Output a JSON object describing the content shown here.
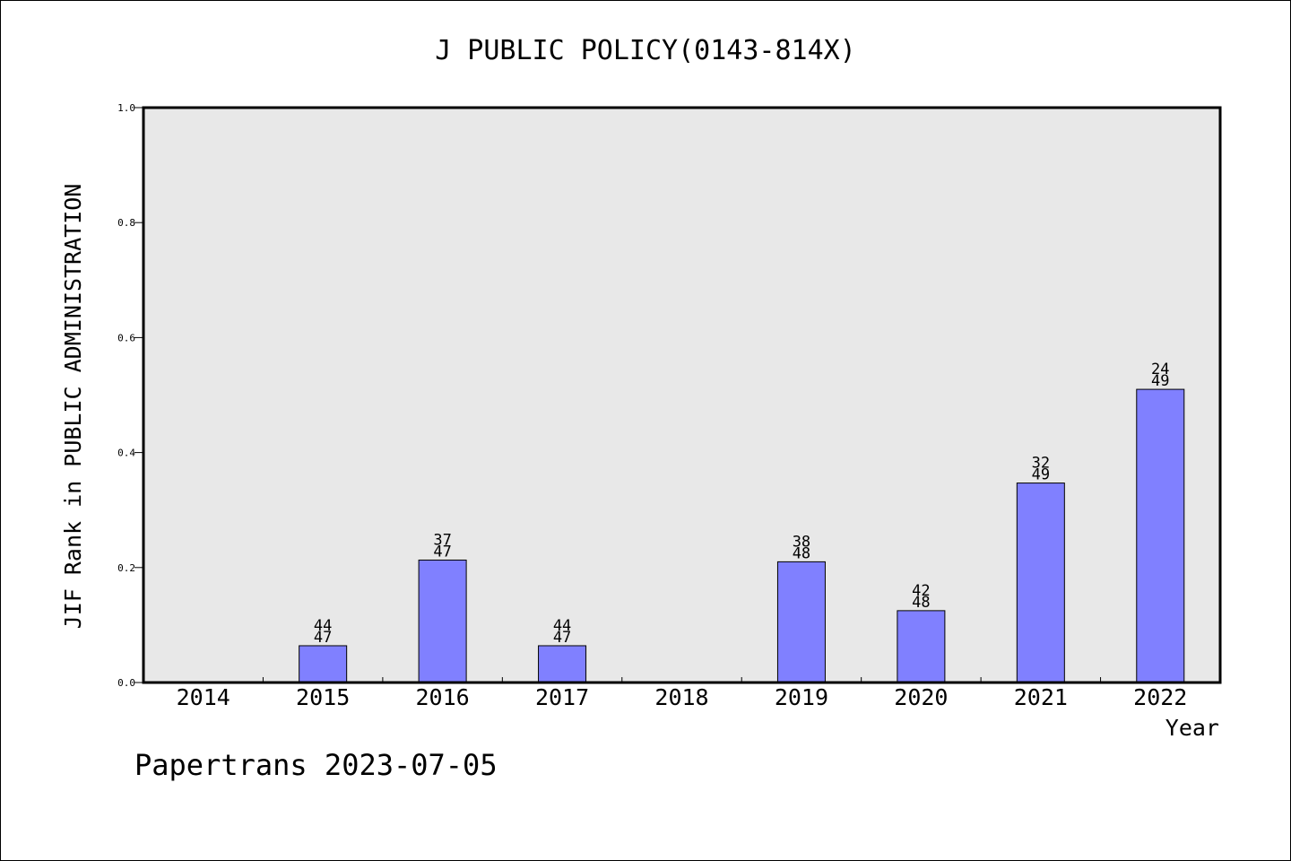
{
  "chart_data": {
    "type": "bar",
    "title": "J PUBLIC POLICY(0143-814X)",
    "xlabel": "Year",
    "ylabel": "JIF Rank in PUBLIC ADMINISTRATION",
    "ylim": [
      0,
      1.0
    ],
    "yticks": [
      "0.0",
      "0.2",
      "0.4",
      "0.6",
      "0.8",
      "1.0"
    ],
    "categories": [
      "2014",
      "2015",
      "2016",
      "2017",
      "2018",
      "2019",
      "2020",
      "2021",
      "2022"
    ],
    "values": [
      null,
      0.064,
      0.213,
      0.064,
      null,
      0.21,
      0.125,
      0.347,
      0.51
    ],
    "labels": [
      null,
      {
        "rank": "44",
        "total": "47"
      },
      {
        "rank": "37",
        "total": "47"
      },
      {
        "rank": "44",
        "total": "47"
      },
      null,
      {
        "rank": "38",
        "total": "48"
      },
      {
        "rank": "42",
        "total": "48"
      },
      {
        "rank": "32",
        "total": "49"
      },
      {
        "rank": "24",
        "total": "49"
      }
    ],
    "grid": false,
    "bar_color": "#8080ff",
    "plot_background": "#e8e8e8"
  },
  "footer": "Papertrans 2023-07-05"
}
